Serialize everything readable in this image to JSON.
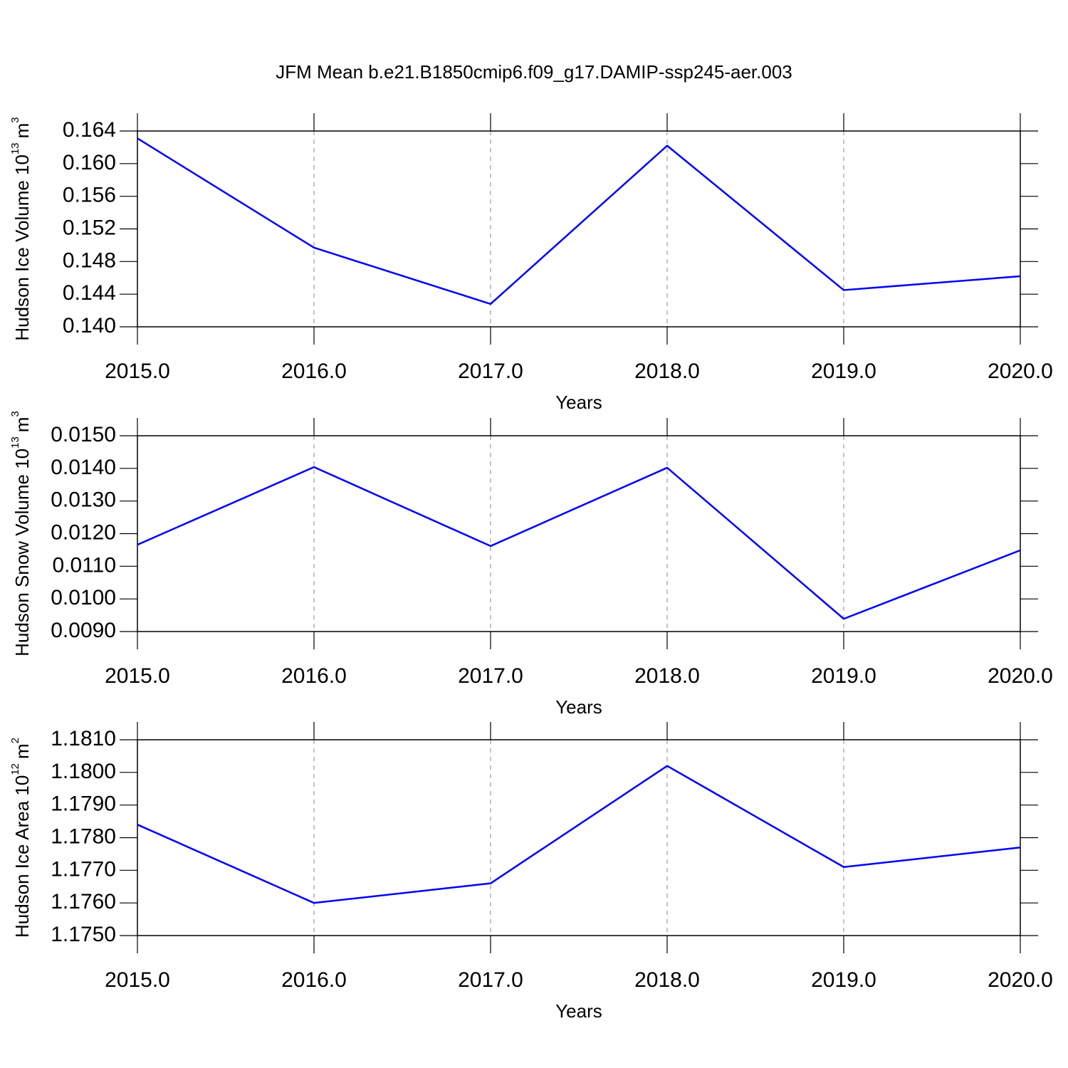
{
  "title": "JFM Mean b.e21.B1850cmip6.f09_g17.DAMIP-ssp245-aer.003",
  "chart_data": [
    {
      "type": "line",
      "color": "#0000ff",
      "grid": "x",
      "xlabel": "Years",
      "ylabel": {
        "text": "Hudson Ice Volume 10",
        "exponent": "13",
        "unit": "m",
        "unit_exponent": "3"
      },
      "x": [
        2015,
        2016,
        2017,
        2018,
        2019,
        2020
      ],
      "values": [
        0.1631,
        0.1497,
        0.1428,
        0.1622,
        0.1445,
        0.1462
      ],
      "xlim": [
        2015,
        2020
      ],
      "xticks": [
        {
          "value": 2015,
          "label": "2015.0"
        },
        {
          "value": 2016,
          "label": "2016.0"
        },
        {
          "value": 2017,
          "label": "2017.0"
        },
        {
          "value": 2018,
          "label": "2018.0"
        },
        {
          "value": 2019,
          "label": "2019.0"
        },
        {
          "value": 2020,
          "label": "2020.0"
        }
      ],
      "ylim": [
        0.14,
        0.164
      ],
      "yticks": [
        {
          "value": 0.14,
          "label": "0.140"
        },
        0.144,
        0.148,
        0.152,
        0.156,
        {
          "value": 0.16,
          "label": "0.160"
        },
        0.164
      ]
    },
    {
      "type": "line",
      "color": "#0000ff",
      "grid": "x",
      "xlabel": "Years",
      "ylabel": {
        "text": "Hudson Snow Volume 10",
        "exponent": "13",
        "unit": "m",
        "unit_exponent": "3"
      },
      "x": [
        2015,
        2016,
        2017,
        2018,
        2019,
        2020
      ],
      "values": [
        0.01166,
        0.01404,
        0.01162,
        0.01402,
        0.00939,
        0.01149
      ],
      "xlim": [
        2015,
        2020
      ],
      "xticks": [
        {
          "value": 2015,
          "label": "2015.0"
        },
        {
          "value": 2016,
          "label": "2016.0"
        },
        {
          "value": 2017,
          "label": "2017.0"
        },
        {
          "value": 2018,
          "label": "2018.0"
        },
        {
          "value": 2019,
          "label": "2019.0"
        },
        {
          "value": 2020,
          "label": "2020.0"
        }
      ],
      "ylim": [
        0.009,
        0.015
      ],
      "yticks": [
        {
          "value": 0.009,
          "label": "0.0090"
        },
        {
          "value": 0.01,
          "label": "0.0100"
        },
        {
          "value": 0.011,
          "label": "0.0110"
        },
        {
          "value": 0.012,
          "label": "0.0120"
        },
        {
          "value": 0.013,
          "label": "0.0130"
        },
        {
          "value": 0.014,
          "label": "0.0140"
        },
        {
          "value": 0.015,
          "label": "0.0150"
        }
      ]
    },
    {
      "type": "line",
      "color": "#0000ff",
      "grid": "x",
      "xlabel": "Years",
      "ylabel": {
        "text": "Hudson Ice Area 10",
        "exponent": "12",
        "unit": "m",
        "unit_exponent": "2"
      },
      "x": [
        2015,
        2016,
        2017,
        2018,
        2019,
        2020
      ],
      "values": [
        1.1784,
        1.176,
        1.1766,
        1.1802,
        1.1771,
        1.1777
      ],
      "xlim": [
        2015,
        2020
      ],
      "xticks": [
        {
          "value": 2015,
          "label": "2015.0"
        },
        {
          "value": 2016,
          "label": "2016.0"
        },
        {
          "value": 2017,
          "label": "2017.0"
        },
        {
          "value": 2018,
          "label": "2018.0"
        },
        {
          "value": 2019,
          "label": "2019.0"
        },
        {
          "value": 2020,
          "label": "2020.0"
        }
      ],
      "ylim": [
        1.175,
        1.181
      ],
      "yticks": [
        {
          "value": 1.175,
          "label": "1.1750"
        },
        {
          "value": 1.176,
          "label": "1.1760"
        },
        {
          "value": 1.177,
          "label": "1.1770"
        },
        {
          "value": 1.178,
          "label": "1.1780"
        },
        {
          "value": 1.179,
          "label": "1.1790"
        },
        {
          "value": 1.18,
          "label": "1.1800"
        },
        {
          "value": 1.181,
          "label": "1.1810"
        }
      ]
    }
  ]
}
